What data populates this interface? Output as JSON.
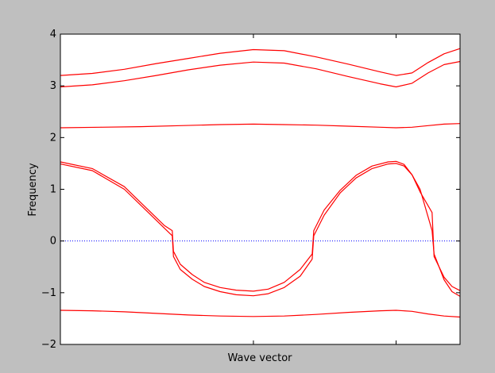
{
  "chart_data": {
    "type": "line",
    "title": "",
    "xlabel": "Wave vector",
    "ylabel": "Frequency",
    "xlim": [
      0,
      1
    ],
    "ylim": [
      -2,
      4
    ],
    "yticks": [
      -2,
      -1,
      0,
      1,
      2,
      3,
      4
    ],
    "ytick_labels": [
      "−2",
      "−1",
      "0",
      "1",
      "2",
      "3",
      "4"
    ],
    "xticks_marked": [
      0.483,
      0.84
    ],
    "zero_line": {
      "y": 0,
      "style": "dotted",
      "color": "#0000ff"
    },
    "grid": false,
    "line_color": "#ff0000",
    "background": "#ffffff",
    "figure_background": "#bfbfbf",
    "series": [
      {
        "x": [
          0,
          0.08,
          0.16,
          0.24,
          0.32,
          0.4,
          0.483,
          0.56,
          0.64,
          0.72,
          0.8,
          0.84,
          0.88,
          0.92,
          0.96,
          1.0
        ],
        "y": [
          3.2,
          3.24,
          3.32,
          3.43,
          3.53,
          3.63,
          3.7,
          3.68,
          3.56,
          3.42,
          3.27,
          3.2,
          3.25,
          3.45,
          3.62,
          3.72
        ]
      },
      {
        "x": [
          0,
          0.08,
          0.16,
          0.24,
          0.32,
          0.4,
          0.483,
          0.56,
          0.64,
          0.72,
          0.8,
          0.84,
          0.88,
          0.92,
          0.96,
          1.0
        ],
        "y": [
          2.98,
          3.02,
          3.1,
          3.2,
          3.31,
          3.4,
          3.46,
          3.44,
          3.33,
          3.18,
          3.04,
          2.98,
          3.05,
          3.25,
          3.41,
          3.47
        ]
      },
      {
        "x": [
          0,
          0.1,
          0.2,
          0.3,
          0.4,
          0.483,
          0.56,
          0.64,
          0.72,
          0.8,
          0.84,
          0.88,
          0.92,
          0.96,
          1.0
        ],
        "y": [
          2.19,
          2.2,
          2.21,
          2.23,
          2.25,
          2.26,
          2.25,
          2.24,
          2.22,
          2.2,
          2.19,
          2.2,
          2.23,
          2.26,
          2.27
        ]
      },
      {
        "x": [
          0,
          0.08,
          0.16,
          0.22,
          0.26,
          0.28,
          0.283,
          0.3,
          0.33,
          0.36,
          0.4,
          0.44,
          0.483,
          0.52,
          0.56,
          0.6,
          0.63,
          0.634,
          0.66,
          0.7,
          0.74,
          0.78,
          0.82,
          0.84,
          0.86,
          0.88,
          0.9,
          0.93,
          0.935,
          0.96,
          0.98,
          1.0
        ],
        "y": [
          1.53,
          1.4,
          1.05,
          0.6,
          0.3,
          0.2,
          -0.2,
          -0.45,
          -0.65,
          -0.8,
          -0.9,
          -0.95,
          -0.97,
          -0.93,
          -0.8,
          -0.55,
          -0.25,
          0.2,
          0.6,
          0.98,
          1.27,
          1.45,
          1.53,
          1.54,
          1.48,
          1.28,
          0.95,
          0.55,
          -0.3,
          -0.7,
          -0.88,
          -0.96
        ]
      },
      {
        "x": [
          0,
          0.08,
          0.16,
          0.22,
          0.26,
          0.28,
          0.283,
          0.3,
          0.33,
          0.36,
          0.4,
          0.44,
          0.483,
          0.52,
          0.56,
          0.6,
          0.63,
          0.634,
          0.66,
          0.7,
          0.74,
          0.78,
          0.82,
          0.84,
          0.86,
          0.88,
          0.9,
          0.93,
          0.935,
          0.96,
          0.98,
          1.0
        ],
        "y": [
          1.49,
          1.36,
          1.0,
          0.55,
          0.25,
          0.1,
          -0.3,
          -0.55,
          -0.74,
          -0.88,
          -0.98,
          -1.04,
          -1.06,
          -1.02,
          -0.9,
          -0.68,
          -0.35,
          0.1,
          0.5,
          0.93,
          1.22,
          1.4,
          1.49,
          1.5,
          1.45,
          1.28,
          1.0,
          0.2,
          -0.25,
          -0.75,
          -0.98,
          -1.07
        ]
      },
      {
        "x": [
          0,
          0.08,
          0.16,
          0.24,
          0.32,
          0.4,
          0.483,
          0.56,
          0.64,
          0.72,
          0.8,
          0.84,
          0.88,
          0.92,
          0.96,
          1.0
        ],
        "y": [
          -1.34,
          -1.35,
          -1.37,
          -1.4,
          -1.43,
          -1.45,
          -1.46,
          -1.45,
          -1.42,
          -1.38,
          -1.35,
          -1.34,
          -1.36,
          -1.41,
          -1.45,
          -1.47
        ]
      }
    ]
  }
}
